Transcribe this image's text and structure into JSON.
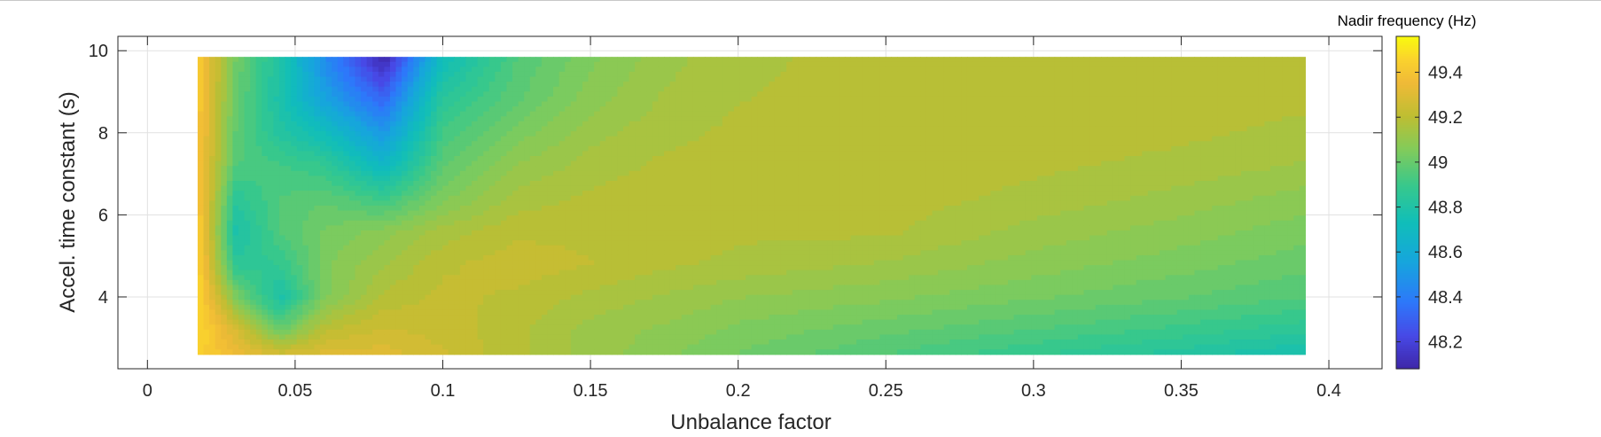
{
  "chart_data": {
    "type": "heatmap",
    "title": "",
    "xlabel": "Unbalance factor",
    "ylabel": "Accel. time constant (s)",
    "colorbar_label": "Nadir frequency (Hz)",
    "xlim": [
      -0.01,
      0.418
    ],
    "ylim": [
      2.25,
      10.35
    ],
    "xticks": [
      0,
      0.05,
      0.1,
      0.15,
      0.2,
      0.25,
      0.3,
      0.35,
      0.4
    ],
    "xtick_labels": [
      "0",
      "0.05",
      "0.1",
      "0.15",
      "0.2",
      "0.25",
      "0.3",
      "0.35",
      "0.4"
    ],
    "yticks": [
      4,
      6,
      8,
      10
    ],
    "ytick_labels": [
      "4",
      "6",
      "8",
      "10"
    ],
    "clim": [
      48.08,
      49.56
    ],
    "cticks": [
      48.2,
      48.4,
      48.6,
      48.8,
      49,
      49.2,
      49.4
    ],
    "ctick_labels": [
      "48.2",
      "48.4",
      "48.6",
      "48.8",
      "49",
      "49.2",
      "49.4"
    ],
    "colormap": "parula",
    "grid": true,
    "x": [
      0.017,
      0.03,
      0.045,
      0.06,
      0.08,
      0.1,
      0.125,
      0.15,
      0.175,
      0.2,
      0.25,
      0.3,
      0.35,
      0.392
    ],
    "y": [
      2.6,
      3.2,
      4.0,
      4.8,
      5.6,
      6.4,
      7.2,
      8.0,
      8.8,
      9.85
    ],
    "z": [
      [
        49.45,
        49.35,
        49.27,
        49.3,
        49.3,
        49.25,
        49.18,
        49.12,
        49.07,
        49.02,
        48.95,
        48.88,
        48.82,
        48.76
      ],
      [
        49.48,
        49.28,
        49.0,
        49.2,
        49.25,
        49.23,
        49.18,
        49.12,
        49.09,
        49.05,
        49.0,
        48.95,
        48.9,
        48.85
      ],
      [
        49.48,
        49.05,
        48.78,
        49.05,
        49.18,
        49.22,
        49.2,
        49.16,
        49.13,
        49.1,
        49.07,
        49.03,
        48.99,
        48.95
      ],
      [
        49.47,
        48.85,
        48.88,
        49.05,
        49.13,
        49.2,
        49.23,
        49.21,
        49.18,
        49.16,
        49.13,
        49.08,
        49.04,
        49.0
      ],
      [
        49.45,
        48.78,
        48.95,
        49.03,
        49.08,
        49.15,
        49.2,
        49.2,
        49.2,
        49.18,
        49.18,
        49.12,
        49.08,
        49.04
      ],
      [
        49.43,
        48.85,
        48.95,
        48.98,
        48.9,
        49.05,
        49.15,
        49.18,
        49.2,
        49.19,
        49.19,
        49.16,
        49.12,
        49.08
      ],
      [
        49.42,
        48.95,
        48.92,
        48.88,
        48.68,
        48.98,
        49.1,
        49.15,
        49.18,
        49.19,
        49.19,
        49.18,
        49.16,
        49.13
      ],
      [
        49.42,
        48.98,
        48.82,
        48.72,
        48.5,
        48.92,
        49.04,
        49.12,
        49.16,
        49.18,
        49.19,
        49.19,
        49.18,
        49.16
      ],
      [
        49.43,
        49.0,
        48.78,
        48.55,
        48.32,
        48.85,
        48.98,
        49.08,
        49.14,
        49.17,
        49.19,
        49.19,
        49.19,
        49.18
      ],
      [
        49.44,
        49.02,
        48.8,
        48.45,
        48.08,
        48.72,
        48.95,
        49.05,
        49.12,
        49.16,
        49.19,
        49.2,
        49.2,
        49.2
      ]
    ]
  }
}
